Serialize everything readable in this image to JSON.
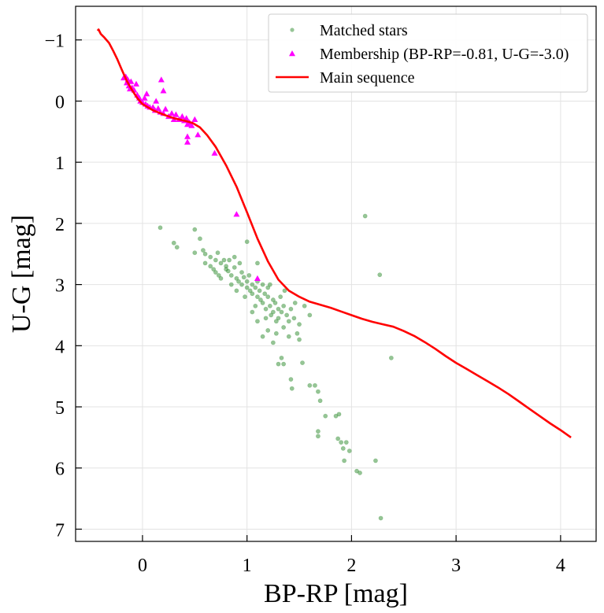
{
  "chart_data": {
    "type": "scatter",
    "xlabel": "BP-RP [mag]",
    "ylabel": "U-G [mag]",
    "xlim": [
      -0.64,
      4.34
    ],
    "ylim": [
      7.2,
      -1.55
    ],
    "y_inverted": true,
    "grid": true,
    "legend_position": "top-right",
    "x_ticks": [
      0,
      1,
      2,
      3,
      4
    ],
    "x_tick_labels": [
      "0",
      "1",
      "2",
      "3",
      "4"
    ],
    "y_ticks": [
      -1,
      0,
      1,
      2,
      3,
      4,
      5,
      6,
      7
    ],
    "y_tick_labels": [
      "−1",
      "0",
      "1",
      "2",
      "3",
      "4",
      "5",
      "6",
      "7"
    ],
    "colors": {
      "matched": "#2e8b2e",
      "membership": "#ff00ff",
      "main_sequence": "#ff0000"
    },
    "series": [
      {
        "name": "Matched stars",
        "kind": "scatter",
        "marker": "circle",
        "points": [
          [
            0.17,
            2.07
          ],
          [
            0.3,
            2.32
          ],
          [
            0.33,
            2.39
          ],
          [
            0.5,
            2.1
          ],
          [
            0.55,
            2.25
          ],
          [
            0.5,
            2.48
          ],
          [
            0.6,
            2.5
          ],
          [
            0.65,
            2.55
          ],
          [
            0.72,
            2.48
          ],
          [
            0.7,
            2.6
          ],
          [
            0.75,
            2.65
          ],
          [
            0.78,
            2.6
          ],
          [
            0.8,
            2.7
          ],
          [
            0.8,
            2.75
          ],
          [
            0.82,
            2.78
          ],
          [
            0.85,
            2.85
          ],
          [
            0.88,
            2.72
          ],
          [
            0.9,
            2.9
          ],
          [
            0.92,
            2.95
          ],
          [
            0.95,
            2.8
          ],
          [
            0.95,
            3.0
          ],
          [
            0.97,
            2.88
          ],
          [
            1.0,
            2.95
          ],
          [
            1.0,
            3.05
          ],
          [
            1.02,
            2.85
          ],
          [
            1.03,
            3.1
          ],
          [
            1.05,
            3.0
          ],
          [
            1.05,
            3.15
          ],
          [
            1.08,
            3.05
          ],
          [
            1.1,
            3.2
          ],
          [
            1.1,
            2.95
          ],
          [
            1.12,
            3.1
          ],
          [
            1.13,
            3.25
          ],
          [
            1.15,
            3.0
          ],
          [
            1.15,
            3.3
          ],
          [
            1.17,
            3.15
          ],
          [
            1.18,
            3.4
          ],
          [
            1.2,
            3.2
          ],
          [
            1.2,
            3.05
          ],
          [
            1.22,
            3.35
          ],
          [
            1.23,
            3.5
          ],
          [
            1.25,
            3.25
          ],
          [
            1.25,
            3.45
          ],
          [
            1.27,
            3.3
          ],
          [
            1.28,
            3.6
          ],
          [
            1.3,
            3.4
          ],
          [
            1.3,
            3.55
          ],
          [
            1.32,
            3.2
          ],
          [
            1.33,
            3.45
          ],
          [
            1.35,
            3.7
          ],
          [
            1.35,
            3.35
          ],
          [
            1.38,
            3.5
          ],
          [
            1.4,
            3.6
          ],
          [
            1.4,
            3.85
          ],
          [
            1.42,
            3.4
          ],
          [
            1.45,
            3.55
          ],
          [
            1.48,
            3.8
          ],
          [
            1.5,
            3.65
          ],
          [
            1.55,
            3.35
          ],
          [
            1.6,
            3.5
          ],
          [
            1.2,
            3.75
          ],
          [
            1.15,
            3.85
          ],
          [
            1.1,
            3.6
          ],
          [
            1.05,
            3.45
          ],
          [
            0.98,
            3.2
          ],
          [
            0.9,
            3.1
          ],
          [
            0.85,
            3.0
          ],
          [
            0.75,
            2.9
          ],
          [
            0.7,
            2.8
          ],
          [
            0.65,
            2.7
          ],
          [
            0.6,
            2.65
          ],
          [
            0.68,
            2.75
          ],
          [
            0.73,
            2.85
          ],
          [
            0.93,
            2.65
          ],
          [
            0.88,
            2.55
          ],
          [
            0.83,
            2.6
          ],
          [
            1.08,
            3.35
          ],
          [
            1.18,
            3.55
          ],
          [
            1.28,
            3.8
          ],
          [
            1.33,
            4.2
          ],
          [
            1.35,
            4.3
          ],
          [
            1.3,
            4.3
          ],
          [
            1.53,
            4.28
          ],
          [
            1.42,
            4.55
          ],
          [
            1.43,
            4.7
          ],
          [
            1.6,
            4.65
          ],
          [
            1.65,
            4.65
          ],
          [
            1.68,
            4.75
          ],
          [
            1.7,
            4.9
          ],
          [
            1.75,
            5.15
          ],
          [
            1.85,
            5.15
          ],
          [
            1.88,
            5.12
          ],
          [
            1.68,
            5.4
          ],
          [
            1.68,
            5.48
          ],
          [
            1.87,
            5.52
          ],
          [
            1.9,
            5.58
          ],
          [
            1.92,
            5.68
          ],
          [
            1.95,
            5.58
          ],
          [
            1.98,
            5.72
          ],
          [
            1.93,
            5.88
          ],
          [
            2.05,
            6.05
          ],
          [
            2.08,
            6.08
          ],
          [
            2.23,
            5.88
          ],
          [
            2.28,
            6.82
          ],
          [
            2.13,
            1.88
          ],
          [
            2.27,
            2.84
          ],
          [
            2.38,
            4.2
          ],
          [
            1.0,
            2.3
          ],
          [
            1.1,
            2.65
          ],
          [
            0.58,
            2.44
          ],
          [
            1.22,
            3.0
          ],
          [
            1.36,
            3.1
          ],
          [
            1.46,
            3.3
          ],
          [
            1.5,
            3.9
          ],
          [
            1.25,
            3.95
          ]
        ]
      },
      {
        "name": "Membership (BP-RP=-0.81, U-G=-3.0)",
        "kind": "scatter",
        "marker": "triangle",
        "points": [
          [
            -0.18,
            -0.38
          ],
          [
            -0.16,
            -0.4
          ],
          [
            -0.15,
            -0.3
          ],
          [
            -0.14,
            -0.35
          ],
          [
            -0.13,
            -0.25
          ],
          [
            -0.12,
            -0.2
          ],
          [
            -0.11,
            -0.32
          ],
          [
            -0.1,
            -0.22
          ],
          [
            -0.08,
            -0.18
          ],
          [
            -0.06,
            -0.28
          ],
          [
            -0.05,
            -0.1
          ],
          [
            -0.03,
            -0.05
          ],
          [
            -0.02,
            0.0
          ],
          [
            0.0,
            0.02
          ],
          [
            0.02,
            -0.05
          ],
          [
            0.03,
            0.05
          ],
          [
            0.04,
            -0.12
          ],
          [
            0.05,
            0.08
          ],
          [
            0.07,
            0.1
          ],
          [
            0.1,
            0.1
          ],
          [
            0.12,
            0.15
          ],
          [
            0.13,
            0.0
          ],
          [
            0.15,
            0.12
          ],
          [
            0.17,
            0.18
          ],
          [
            0.18,
            -0.35
          ],
          [
            0.2,
            0.2
          ],
          [
            0.2,
            -0.17
          ],
          [
            0.22,
            0.13
          ],
          [
            0.25,
            0.25
          ],
          [
            0.28,
            0.2
          ],
          [
            0.3,
            0.3
          ],
          [
            0.32,
            0.22
          ],
          [
            0.35,
            0.3
          ],
          [
            0.38,
            0.25
          ],
          [
            0.4,
            0.32
          ],
          [
            0.42,
            0.28
          ],
          [
            0.43,
            0.38
          ],
          [
            0.45,
            0.35
          ],
          [
            0.47,
            0.4
          ],
          [
            0.5,
            0.3
          ],
          [
            0.43,
            0.58
          ],
          [
            0.43,
            0.67
          ],
          [
            0.53,
            0.55
          ],
          [
            0.69,
            0.85
          ],
          [
            0.9,
            1.85
          ],
          [
            1.1,
            2.9
          ]
        ]
      },
      {
        "name": "Main sequence",
        "kind": "line",
        "points": [
          [
            -0.43,
            -1.15
          ],
          [
            -0.42,
            -1.17
          ],
          [
            -0.4,
            -1.1
          ],
          [
            -0.37,
            -1.05
          ],
          [
            -0.32,
            -0.95
          ],
          [
            -0.28,
            -0.82
          ],
          [
            -0.24,
            -0.68
          ],
          [
            -0.2,
            -0.52
          ],
          [
            -0.15,
            -0.33
          ],
          [
            -0.1,
            -0.18
          ],
          [
            -0.05,
            -0.05
          ],
          [
            0.0,
            0.05
          ],
          [
            0.1,
            0.15
          ],
          [
            0.2,
            0.22
          ],
          [
            0.3,
            0.28
          ],
          [
            0.4,
            0.32
          ],
          [
            0.48,
            0.36
          ],
          [
            0.55,
            0.43
          ],
          [
            0.62,
            0.56
          ],
          [
            0.7,
            0.75
          ],
          [
            0.8,
            1.05
          ],
          [
            0.9,
            1.4
          ],
          [
            1.0,
            1.82
          ],
          [
            1.1,
            2.25
          ],
          [
            1.2,
            2.62
          ],
          [
            1.3,
            2.92
          ],
          [
            1.4,
            3.1
          ],
          [
            1.5,
            3.2
          ],
          [
            1.6,
            3.28
          ],
          [
            1.7,
            3.33
          ],
          [
            1.8,
            3.38
          ],
          [
            1.9,
            3.44
          ],
          [
            2.0,
            3.5
          ],
          [
            2.1,
            3.56
          ],
          [
            2.2,
            3.61
          ],
          [
            2.3,
            3.65
          ],
          [
            2.4,
            3.69
          ],
          [
            2.5,
            3.76
          ],
          [
            2.6,
            3.84
          ],
          [
            2.7,
            3.94
          ],
          [
            2.8,
            4.05
          ],
          [
            2.9,
            4.17
          ],
          [
            3.0,
            4.28
          ],
          [
            3.1,
            4.38
          ],
          [
            3.2,
            4.48
          ],
          [
            3.3,
            4.58
          ],
          [
            3.4,
            4.68
          ],
          [
            3.5,
            4.79
          ],
          [
            3.6,
            4.91
          ],
          [
            3.7,
            5.03
          ],
          [
            3.8,
            5.15
          ],
          [
            3.9,
            5.27
          ],
          [
            4.0,
            5.38
          ],
          [
            4.1,
            5.5
          ]
        ]
      }
    ]
  }
}
